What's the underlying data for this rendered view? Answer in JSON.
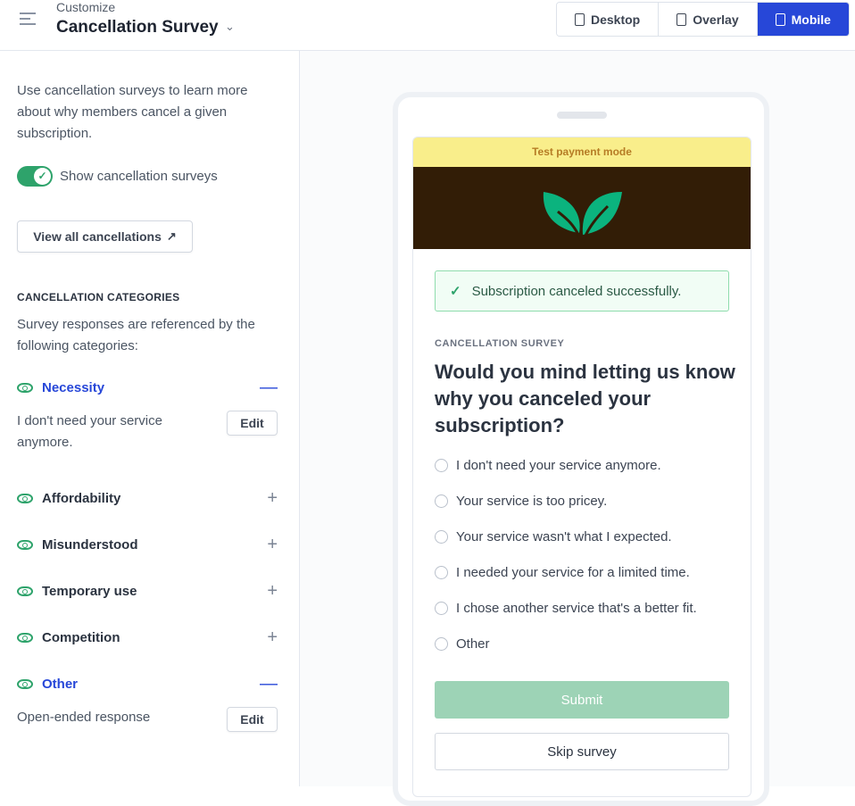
{
  "header": {
    "subtitle": "Customize",
    "title": "Cancellation Survey",
    "views": [
      {
        "label": "Desktop",
        "active": false
      },
      {
        "label": "Overlay",
        "active": false
      },
      {
        "label": "Mobile",
        "active": true
      }
    ]
  },
  "sidebar": {
    "intro": "Use cancellation surveys to learn more about why members cancel a given subscription.",
    "toggle_label": "Show cancellation surveys",
    "toggle_on": true,
    "view_all_label": "View all cancellations",
    "categories_heading": "CANCELLATION CATEGORIES",
    "categories_desc": "Survey responses are referenced by the following categories:",
    "edit_label": "Edit",
    "categories": [
      {
        "name": "Necessity",
        "expanded": true,
        "detail": "I don't need your service anymore."
      },
      {
        "name": "Affordability",
        "expanded": false
      },
      {
        "name": "Misunderstood",
        "expanded": false
      },
      {
        "name": "Temporary use",
        "expanded": false
      },
      {
        "name": "Competition",
        "expanded": false
      },
      {
        "name": "Other",
        "expanded": true,
        "detail": "Open-ended response"
      }
    ]
  },
  "preview": {
    "banner": "Test payment mode",
    "success": "Subscription canceled successfully.",
    "label": "CANCELLATION SURVEY",
    "question": "Would you mind letting us know why you canceled your subscription?",
    "options": [
      "I don't need your service anymore.",
      "Your service is too pricey.",
      "Your service wasn't what I expected.",
      "I needed your service for a limited time.",
      "I chose another service that's a better fit.",
      "Other"
    ],
    "submit": "Submit",
    "skip": "Skip survey"
  },
  "colors": {
    "accent": "#2747d8",
    "success": "#2ea36b",
    "banner": "#f9ee8b",
    "hero": "#321d06"
  }
}
